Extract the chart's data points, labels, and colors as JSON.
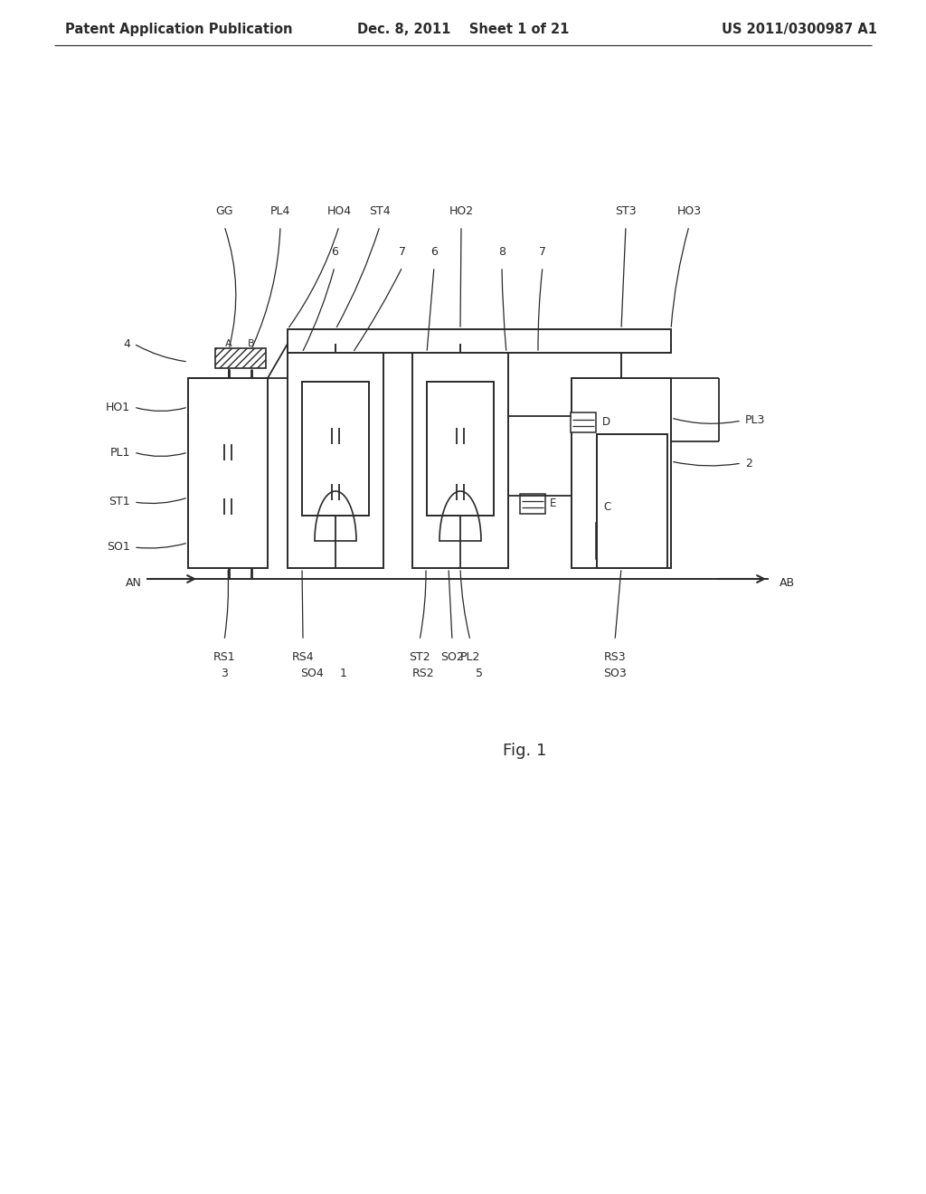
{
  "bg_color": "#ffffff",
  "line_color": "#2a2a2a",
  "header_left": "Patent Application Publication",
  "header_center": "Dec. 8, 2011    Sheet 1 of 21",
  "header_right": "US 2011/0300987 A1",
  "fig_label": "Fig. 1",
  "header_fontsize": 10.5,
  "label_fontsize": 9,
  "fig_fontsize": 13
}
